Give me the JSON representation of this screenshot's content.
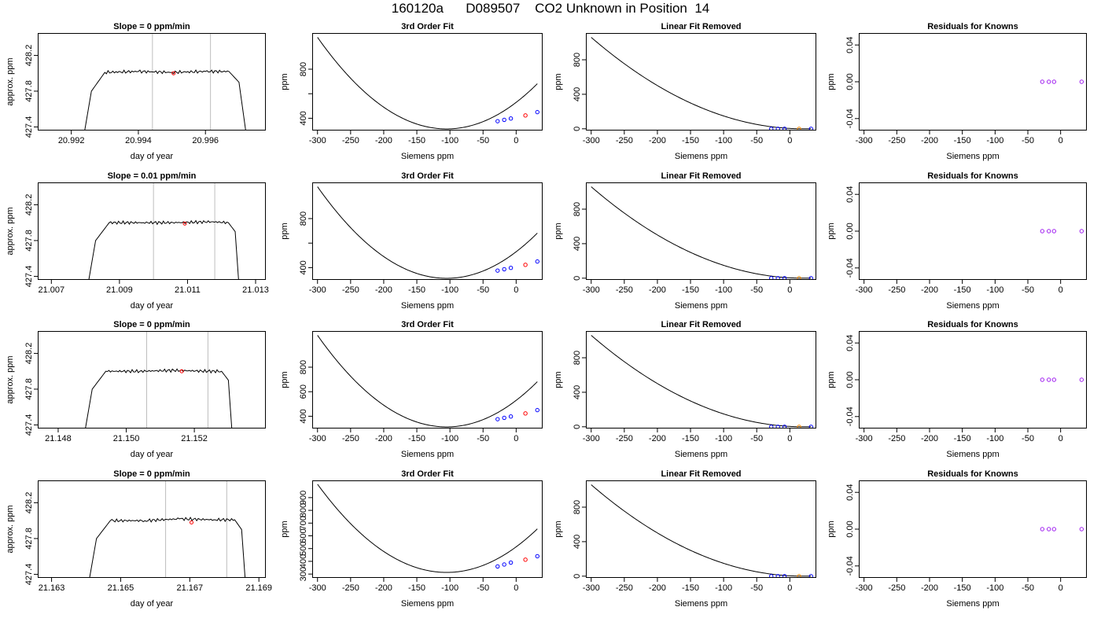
{
  "page": {
    "title": "160120a      D089507    CO2 Unknown in Position  14"
  },
  "colors": {
    "curve": "#000000",
    "vline": "#bebebe",
    "unknown_point": "#ff0000",
    "known_point": "#0000ff",
    "removed_unknown_point": "#ff8c00",
    "residual_point": "#a020f0"
  },
  "chart_data": [
    {
      "type": "line",
      "row": 1,
      "title": "Slope =  0  ppm/min",
      "xlabel": "day of year",
      "ylabel": "approx. ppm",
      "xlim": [
        20.991,
        20.9978
      ],
      "ylim": [
        427.36,
        428.45
      ],
      "xticks": [
        20.992,
        20.994,
        20.996
      ],
      "xtick_labels": [
        "20.992",
        "20.994",
        "20.996"
      ],
      "yticks": [
        427.4,
        427.8,
        428.2
      ],
      "ytick_labels": [
        "427.4",
        "427.8",
        "428.2"
      ],
      "series": [
        {
          "x": [
            20.9924,
            20.9926,
            20.993,
            20.994,
            20.995,
            20.996,
            20.9967,
            20.997,
            20.9972
          ],
          "values": [
            427.36,
            427.8,
            428.01,
            428.02,
            428.01,
            428.02,
            428.02,
            427.9,
            427.36
          ]
        }
      ],
      "vlines": [
        20.99442,
        20.99615
      ],
      "marker": {
        "x": 20.99505,
        "y": 428.0
      }
    },
    {
      "type": "line",
      "row": 1,
      "title": "3rd Order Fit",
      "xlabel": "Siemens ppm",
      "ylabel": "ppm",
      "xlim": [
        -308,
        40
      ],
      "ylim": [
        300,
        1095
      ],
      "xticks": [
        -300,
        -250,
        -200,
        -150,
        -100,
        -50,
        0
      ],
      "xtick_labels": [
        "-300",
        "-250",
        "-200",
        "-150",
        "-100",
        "-50",
        "0"
      ],
      "yticks": [
        400,
        600,
        800
      ],
      "ytick_labels": [
        "400",
        "",
        "800"
      ],
      "curve": {
        "xmin": -300,
        "xmax": 32,
        "ymin": 313,
        "xmin_at": -105,
        "yleft": 1060
      },
      "points": {
        "known": [
          [
            -28,
            376
          ],
          [
            -18,
            387
          ],
          [
            -8,
            398
          ],
          [
            32,
            450
          ]
        ],
        "unknown": [
          [
            14,
            423
          ]
        ]
      }
    },
    {
      "type": "line",
      "row": 1,
      "title": "Linear Fit Removed",
      "xlabel": "Siemens ppm",
      "ylabel": "ppm",
      "xlim": [
        -308,
        40
      ],
      "ylim": [
        -20,
        1110
      ],
      "xticks": [
        -300,
        -250,
        -200,
        -150,
        -100,
        -50,
        0
      ],
      "xtick_labels": [
        "-300",
        "-250",
        "-200",
        "-150",
        "-100",
        "-50",
        "0"
      ],
      "yticks": [
        0,
        400,
        800
      ],
      "ytick_labels": [
        "0",
        "400",
        "800"
      ],
      "curve": {
        "xmin": -300,
        "xmax": 32,
        "ymin": 0,
        "xmin_at": 20,
        "yleft": 1060
      },
      "points": {
        "known": [
          [
            -28,
            0
          ],
          [
            -18,
            0
          ],
          [
            -8,
            0
          ],
          [
            32,
            0
          ]
        ],
        "unknown": [
          [
            14,
            0
          ]
        ]
      }
    },
    {
      "type": "scatter",
      "row": 1,
      "title": "Residuals for Knowns",
      "xlabel": "Siemens ppm",
      "ylabel": "ppm",
      "xlim": [
        -308,
        40
      ],
      "ylim": [
        -0.053,
        0.053
      ],
      "xticks": [
        -300,
        -250,
        -200,
        -150,
        -100,
        -50,
        0
      ],
      "xtick_labels": [
        "-300",
        "-250",
        "-200",
        "-150",
        "-100",
        "-50",
        "0"
      ],
      "yticks": [
        -0.04,
        0,
        0.04
      ],
      "ytick_labels": [
        "-0.04",
        "0.00",
        "0.04"
      ],
      "points": {
        "residual": [
          [
            -28,
            0
          ],
          [
            -18,
            0
          ],
          [
            -10,
            0
          ],
          [
            32,
            0
          ]
        ]
      }
    },
    {
      "type": "line",
      "row": 2,
      "title": "Slope =  0.01  ppm/min",
      "xlabel": "day of year",
      "ylabel": "approx. ppm",
      "xlim": [
        21.0066,
        21.0133
      ],
      "ylim": [
        427.36,
        428.45
      ],
      "xticks": [
        21.007,
        21.009,
        21.011,
        21.013
      ],
      "xtick_labels": [
        "21.007",
        "21.009",
        "21.011",
        "21.013"
      ],
      "yticks": [
        427.4,
        427.8,
        428.2
      ],
      "ytick_labels": [
        "427.4",
        "427.8",
        "428.2"
      ],
      "series": [
        {
          "x": [
            21.0081,
            21.0083,
            21.0087,
            21.0097,
            21.0107,
            21.0117,
            21.0122,
            21.0124,
            21.0125
          ],
          "values": [
            427.36,
            427.8,
            428.0,
            428.0,
            428.0,
            428.01,
            428.0,
            427.9,
            427.36
          ]
        }
      ],
      "vlines": [
        21.01,
        21.0118
      ],
      "marker": {
        "x": 21.01092,
        "y": 427.99
      }
    },
    {
      "type": "line",
      "row": 2,
      "title": "3rd Order Fit",
      "xlabel": "Siemens ppm",
      "ylabel": "ppm",
      "xlim": [
        -308,
        40
      ],
      "ylim": [
        300,
        1095
      ],
      "xticks": [
        -300,
        -250,
        -200,
        -150,
        -100,
        -50,
        0
      ],
      "xtick_labels": [
        "-300",
        "-250",
        "-200",
        "-150",
        "-100",
        "-50",
        "0"
      ],
      "yticks": [
        400,
        600,
        800
      ],
      "ytick_labels": [
        "400",
        "",
        "800"
      ],
      "curve": {
        "xmin": -300,
        "xmax": 32,
        "ymin": 313,
        "xmin_at": -105,
        "yleft": 1060
      },
      "points": {
        "known": [
          [
            -28,
            376
          ],
          [
            -18,
            387
          ],
          [
            -8,
            398
          ],
          [
            32,
            450
          ]
        ],
        "unknown": [
          [
            14,
            423
          ]
        ]
      }
    },
    {
      "type": "line",
      "row": 2,
      "title": "Linear Fit Removed",
      "xlabel": "Siemens ppm",
      "ylabel": "ppm",
      "xlim": [
        -308,
        40
      ],
      "ylim": [
        -20,
        1110
      ],
      "xticks": [
        -300,
        -250,
        -200,
        -150,
        -100,
        -50,
        0
      ],
      "xtick_labels": [
        "-300",
        "-250",
        "-200",
        "-150",
        "-100",
        "-50",
        "0"
      ],
      "yticks": [
        0,
        400,
        800
      ],
      "ytick_labels": [
        "0",
        "400",
        "800"
      ],
      "curve": {
        "xmin": -300,
        "xmax": 32,
        "ymin": 0,
        "xmin_at": 20,
        "yleft": 1060
      },
      "points": {
        "known": [
          [
            -28,
            0
          ],
          [
            -18,
            0
          ],
          [
            -8,
            0
          ],
          [
            32,
            0
          ]
        ],
        "unknown": [
          [
            14,
            0
          ]
        ]
      }
    },
    {
      "type": "scatter",
      "row": 2,
      "title": "Residuals for Knowns",
      "xlabel": "Siemens ppm",
      "ylabel": "ppm",
      "xlim": [
        -308,
        40
      ],
      "ylim": [
        -0.053,
        0.053
      ],
      "xticks": [
        -300,
        -250,
        -200,
        -150,
        -100,
        -50,
        0
      ],
      "xtick_labels": [
        "-300",
        "-250",
        "-200",
        "-150",
        "-100",
        "-50",
        "0"
      ],
      "yticks": [
        -0.04,
        0,
        0.04
      ],
      "ytick_labels": [
        "-0.04",
        "0.00",
        "0.04"
      ],
      "points": {
        "residual": [
          [
            -28,
            0
          ],
          [
            -18,
            0
          ],
          [
            -10,
            0
          ],
          [
            32,
            0
          ]
        ]
      }
    },
    {
      "type": "line",
      "row": 3,
      "title": "Slope =  0  ppm/min",
      "xlabel": "day of year",
      "ylabel": "approx. ppm",
      "xlim": [
        21.1474,
        21.1541
      ],
      "ylim": [
        427.36,
        428.45
      ],
      "xticks": [
        21.148,
        21.15,
        21.152
      ],
      "xtick_labels": [
        "21.148",
        "21.150",
        "21.152"
      ],
      "yticks": [
        427.4,
        427.8,
        428.2
      ],
      "ytick_labels": [
        "427.4",
        "427.8",
        "428.2"
      ],
      "series": [
        {
          "x": [
            21.1488,
            21.149,
            21.1494,
            21.1504,
            21.1514,
            21.1524,
            21.1528,
            21.153,
            21.1531
          ],
          "values": [
            427.36,
            427.8,
            428.0,
            428.0,
            428.01,
            428.0,
            428.0,
            427.9,
            427.36
          ]
        }
      ],
      "vlines": [
        21.1506,
        21.1524
      ],
      "marker": {
        "x": 21.15163,
        "y": 428.0
      }
    },
    {
      "type": "line",
      "row": 3,
      "title": "3rd Order Fit",
      "xlabel": "Siemens ppm",
      "ylabel": "ppm",
      "xlim": [
        -308,
        40
      ],
      "ylim": [
        300,
        1095
      ],
      "xticks": [
        -300,
        -250,
        -200,
        -150,
        -100,
        -50,
        0
      ],
      "xtick_labels": [
        "-300",
        "-250",
        "-200",
        "-150",
        "-100",
        "-50",
        "0"
      ],
      "yticks": [
        400,
        600,
        800
      ],
      "ytick_labels": [
        "400",
        "600",
        "800"
      ],
      "curve": {
        "xmin": -300,
        "xmax": 32,
        "ymin": 313,
        "xmin_at": -105,
        "yleft": 1060
      },
      "points": {
        "known": [
          [
            -28,
            376
          ],
          [
            -18,
            387
          ],
          [
            -8,
            398
          ],
          [
            32,
            450
          ]
        ],
        "unknown": [
          [
            14,
            423
          ]
        ]
      }
    },
    {
      "type": "line",
      "row": 3,
      "title": "Linear Fit Removed",
      "xlabel": "Siemens ppm",
      "ylabel": "ppm",
      "xlim": [
        -308,
        40
      ],
      "ylim": [
        -20,
        1110
      ],
      "xticks": [
        -300,
        -250,
        -200,
        -150,
        -100,
        -50,
        0
      ],
      "xtick_labels": [
        "-300",
        "-250",
        "-200",
        "-150",
        "-100",
        "-50",
        "0"
      ],
      "yticks": [
        0,
        400,
        800
      ],
      "ytick_labels": [
        "0",
        "400",
        "800"
      ],
      "curve": {
        "xmin": -300,
        "xmax": 32,
        "ymin": 0,
        "xmin_at": 20,
        "yleft": 1060
      },
      "points": {
        "known": [
          [
            -28,
            0
          ],
          [
            -18,
            0
          ],
          [
            -8,
            0
          ],
          [
            32,
            0
          ]
        ],
        "unknown": [
          [
            14,
            0
          ]
        ]
      }
    },
    {
      "type": "scatter",
      "row": 3,
      "title": "Residuals for Knowns",
      "xlabel": "Siemens ppm",
      "ylabel": "ppm",
      "xlim": [
        -308,
        40
      ],
      "ylim": [
        -0.053,
        0.053
      ],
      "xticks": [
        -300,
        -250,
        -200,
        -150,
        -100,
        -50,
        0
      ],
      "xtick_labels": [
        "-300",
        "-250",
        "-200",
        "-150",
        "-100",
        "-50",
        "0"
      ],
      "yticks": [
        -0.04,
        0,
        0.04
      ],
      "ytick_labels": [
        "-0.04",
        "0.00",
        "0.04"
      ],
      "points": {
        "residual": [
          [
            -28,
            0
          ],
          [
            -18,
            0
          ],
          [
            -10,
            0
          ],
          [
            32,
            0
          ]
        ]
      }
    },
    {
      "type": "line",
      "row": 4,
      "title": "Slope =  0  ppm/min",
      "xlabel": "day of year",
      "ylabel": "approx. ppm",
      "xlim": [
        21.1626,
        21.1692
      ],
      "ylim": [
        427.36,
        428.45
      ],
      "xticks": [
        21.163,
        21.165,
        21.167,
        21.169
      ],
      "xtick_labels": [
        "21.163",
        "21.165",
        "21.167",
        "21.169"
      ],
      "yticks": [
        427.4,
        427.8,
        428.2
      ],
      "ytick_labels": [
        "427.4",
        "427.8",
        "428.2"
      ],
      "series": [
        {
          "x": [
            21.1641,
            21.1643,
            21.1647,
            21.1657,
            21.1667,
            21.1677,
            21.1683,
            21.1685,
            21.1686
          ],
          "values": [
            427.36,
            427.8,
            428.0,
            428.0,
            428.02,
            428.01,
            428.01,
            427.9,
            427.36
          ]
        }
      ],
      "vlines": [
        21.1663,
        21.16807
      ],
      "marker": {
        "x": 21.16705,
        "y": 427.98
      }
    },
    {
      "type": "line",
      "row": 4,
      "title": "3rd Order Fit",
      "xlabel": "Siemens ppm",
      "ylabel": "ppm",
      "xlim": [
        -308,
        40
      ],
      "ylim": [
        270,
        1035
      ],
      "xticks": [
        -300,
        -250,
        -200,
        -150,
        -100,
        -50,
        0
      ],
      "xtick_labels": [
        "-300",
        "-250",
        "-200",
        "-150",
        "-100",
        "-50",
        "0"
      ],
      "yticks": [
        300,
        400,
        500,
        600,
        700,
        800,
        900
      ],
      "ytick_labels": [
        "300",
        "400",
        "500",
        "600",
        "700",
        "800",
        "900"
      ],
      "curve": {
        "xmin": -300,
        "xmax": 32,
        "ymin": 313,
        "xmin_at": -105,
        "yleft": 1005
      },
      "points": {
        "known": [
          [
            -28,
            360
          ],
          [
            -18,
            375
          ],
          [
            -8,
            390
          ],
          [
            32,
            440
          ]
        ],
        "unknown": [
          [
            14,
            413
          ]
        ]
      }
    },
    {
      "type": "line",
      "row": 4,
      "title": "Linear Fit Removed",
      "xlabel": "Siemens ppm",
      "ylabel": "ppm",
      "xlim": [
        -308,
        40
      ],
      "ylim": [
        -20,
        1110
      ],
      "xticks": [
        -300,
        -250,
        -200,
        -150,
        -100,
        -50,
        0
      ],
      "xtick_labels": [
        "-300",
        "-250",
        "-200",
        "-150",
        "-100",
        "-50",
        "0"
      ],
      "yticks": [
        0,
        400,
        800
      ],
      "ytick_labels": [
        "0",
        "400",
        "800"
      ],
      "curve": {
        "xmin": -300,
        "xmax": 32,
        "ymin": 0,
        "xmin_at": 20,
        "yleft": 1060
      },
      "points": {
        "known": [
          [
            -28,
            0
          ],
          [
            -18,
            0
          ],
          [
            -8,
            0
          ],
          [
            32,
            0
          ]
        ],
        "unknown": [
          [
            14,
            0
          ]
        ]
      }
    },
    {
      "type": "scatter",
      "row": 4,
      "title": "Residuals for Knowns",
      "xlabel": "Siemens ppm",
      "ylabel": "ppm",
      "xlim": [
        -308,
        40
      ],
      "ylim": [
        -0.053,
        0.053
      ],
      "xticks": [
        -300,
        -250,
        -200,
        -150,
        -100,
        -50,
        0
      ],
      "xtick_labels": [
        "-300",
        "-250",
        "-200",
        "-150",
        "-100",
        "-50",
        "0"
      ],
      "yticks": [
        -0.04,
        0,
        0.04
      ],
      "ytick_labels": [
        "-0.04",
        "0.00",
        "0.04"
      ],
      "points": {
        "residual": [
          [
            -28,
            0
          ],
          [
            -18,
            0
          ],
          [
            -10,
            0
          ],
          [
            32,
            0
          ]
        ]
      }
    }
  ]
}
